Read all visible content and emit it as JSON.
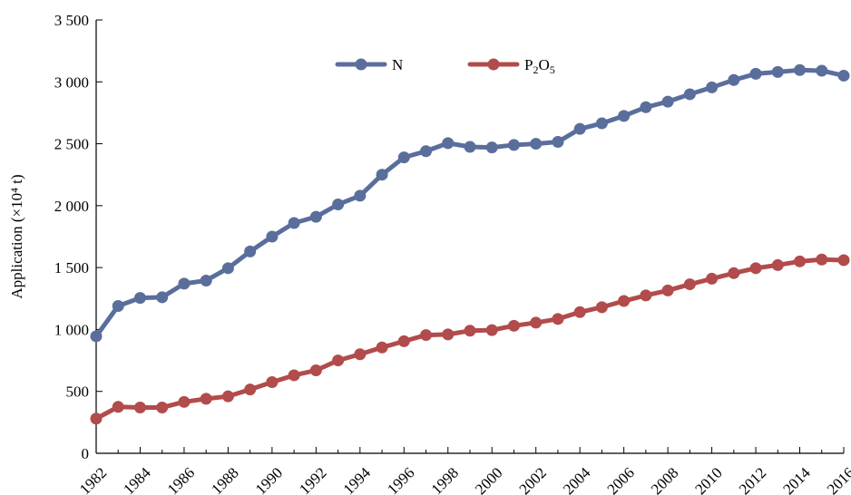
{
  "chart_data": {
    "type": "line",
    "title": "",
    "xlabel": "",
    "ylabel": "Application (×10⁴ t)",
    "ylim": [
      0,
      3500
    ],
    "xlim": [
      1982,
      2016
    ],
    "yticks": [
      0,
      500,
      1000,
      1500,
      2000,
      2500,
      3000,
      3500
    ],
    "ytick_labels": [
      "0",
      "500",
      "1 000",
      "1 500",
      "2 000",
      "2 500",
      "3 000",
      "3 500"
    ],
    "xticks": [
      1982,
      1984,
      1986,
      1988,
      1990,
      1992,
      1994,
      1996,
      1998,
      2000,
      2002,
      2004,
      2006,
      2008,
      2010,
      2012,
      2014,
      2016
    ],
    "grid": false,
    "legend": "top-center",
    "x": [
      1982,
      1983,
      1984,
      1985,
      1986,
      1987,
      1988,
      1989,
      1990,
      1991,
      1992,
      1993,
      1994,
      1995,
      1996,
      1997,
      1998,
      1999,
      2000,
      2001,
      2002,
      2003,
      2004,
      2005,
      2006,
      2007,
      2008,
      2009,
      2010,
      2011,
      2012,
      2013,
      2014,
      2015,
      2016
    ],
    "series": [
      {
        "name": "N",
        "color": "#5a6e9c",
        "values": [
          945,
          1190,
          1255,
          1260,
          1370,
          1395,
          1495,
          1630,
          1750,
          1860,
          1910,
          2010,
          2080,
          2250,
          2390,
          2440,
          2505,
          2475,
          2470,
          2490,
          2500,
          2515,
          2620,
          2665,
          2725,
          2795,
          2840,
          2900,
          2955,
          3015,
          3065,
          3080,
          3095,
          3090,
          3050
        ]
      },
      {
        "name": "P2O5",
        "color": "#b24b4b",
        "values": [
          280,
          375,
          370,
          370,
          415,
          440,
          460,
          515,
          575,
          630,
          670,
          750,
          800,
          855,
          905,
          955,
          960,
          990,
          995,
          1030,
          1055,
          1085,
          1140,
          1180,
          1230,
          1275,
          1315,
          1365,
          1410,
          1455,
          1495,
          1520,
          1550,
          1565,
          1560
        ]
      }
    ]
  }
}
